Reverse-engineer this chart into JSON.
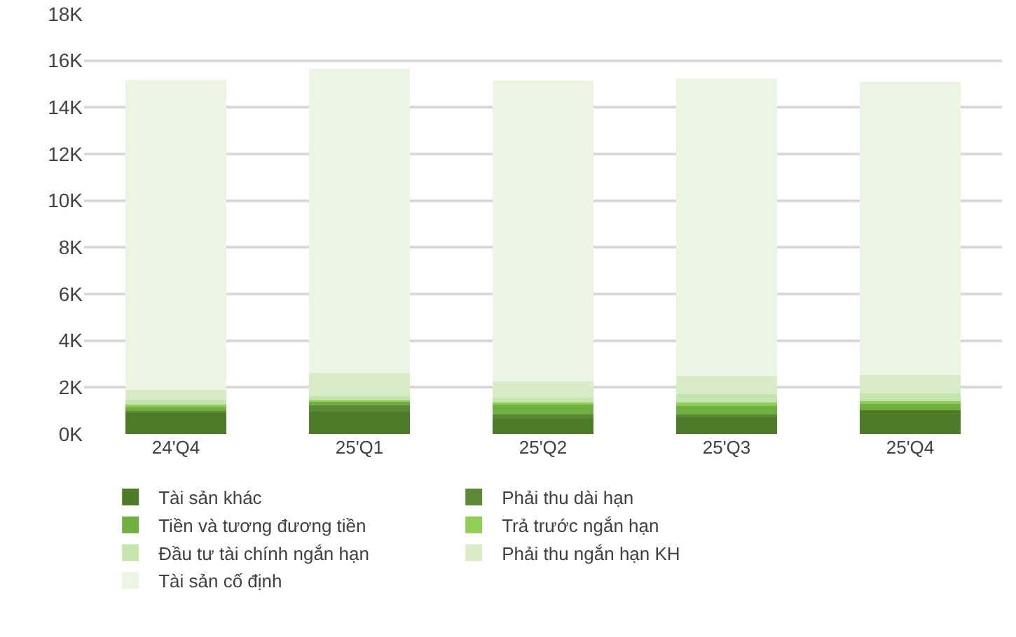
{
  "chart_data": {
    "type": "bar",
    "stacked": true,
    "categories": [
      "24'Q4",
      "25'Q1",
      "25'Q2",
      "25'Q3",
      "25'Q4"
    ],
    "series": [
      {
        "name": "Tài sản khác",
        "color": "#4e7b28",
        "values": [
          0.95,
          0.95,
          0.66,
          0.72,
          1.03
        ]
      },
      {
        "name": "Phải thu dài hạn",
        "color": "#5a8a36",
        "values": [
          0.05,
          0.27,
          0.19,
          0.12,
          null
        ]
      },
      {
        "name": "Tiền và tương đương tiền",
        "color": "#70b040",
        "values": [
          0.15,
          0.16,
          0.45,
          0.41,
          0.25
        ]
      },
      {
        "name": "Trả trước ngắn hạn",
        "color": "#8fcd55",
        "values": [
          0.1,
          0.06,
          0.04,
          0.1,
          0.12
        ]
      },
      {
        "name": "Đầu tư tài chính ngắn hạn",
        "color": "#c6e4ad",
        "values": [
          0.23,
          0.17,
          0.23,
          0.37,
          0.35
        ]
      },
      {
        "name": "Phải thu ngắn hạn KH",
        "color": "#d9ecc8",
        "values": [
          0.4,
          0.99,
          0.68,
          0.76,
          0.78
        ]
      },
      {
        "name": "Tài sản cố định",
        "color": "#ebf5e1",
        "values": [
          13.3,
          13.05,
          12.9,
          12.77,
          12.55
        ]
      }
    ],
    "ylim": [
      0,
      18
    ],
    "yticks": [
      {
        "value": 0,
        "label": "0K"
      },
      {
        "value": 2,
        "label": "2K"
      },
      {
        "value": 4,
        "label": "4K"
      },
      {
        "value": 6,
        "label": "6K"
      },
      {
        "value": 8,
        "label": "8K"
      },
      {
        "value": 10,
        "label": "10K"
      },
      {
        "value": 12,
        "label": "12K"
      },
      {
        "value": 14,
        "label": "14K"
      },
      {
        "value": 16,
        "label": "16K"
      },
      {
        "value": 18,
        "label": "18K"
      }
    ],
    "grid": "y",
    "legend": "bottom"
  }
}
